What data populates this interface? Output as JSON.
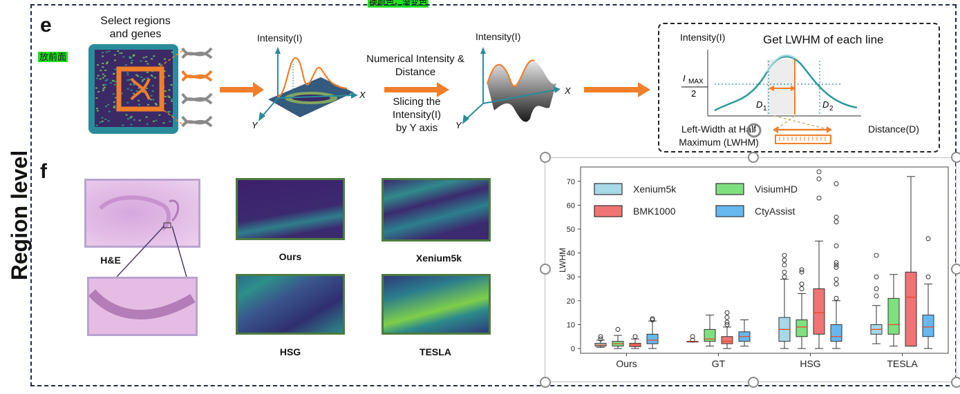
{
  "top_tag": "换颜色，渐变色",
  "side_tag": "放前面",
  "region_title": "Region level",
  "panel_e": {
    "letter": "e",
    "select_label": "Select regions and genes",
    "intensity_axis_1": "Intensity(I)",
    "intensity_axis_2": "Intensity(I)",
    "intensity_axis_3": "Intensity(I)",
    "x_axis": "X",
    "y_axis": "Y",
    "numerical_label": "Numerical Intensity & Distance",
    "slicing_label": "Slicing the Intensity(I) by Y axis",
    "lwhm_title": "Get LWHM of each line",
    "imax_num": "I",
    "imax_sub": "MAX",
    "imax_den": "2",
    "d1": "D",
    "d1_sub": "1",
    "d2": "D",
    "d2_sub": "2",
    "distance_label": "Distance(D)",
    "lwhm_caption": "Left-Width at Half Maximum (LWHM)"
  },
  "panel_f": {
    "letter": "f",
    "thumb_labels": [
      "H&E",
      "Ours",
      "Xenium5k",
      "HSG",
      "TESLA"
    ]
  },
  "colors": {
    "teal": "#2a8c9a",
    "orange": "#f07f2a",
    "navy": "#1f2a44",
    "tag_green": "#22e022"
  },
  "chart_data": {
    "type": "box",
    "ylabel": "LWHM",
    "ylim": [
      -2,
      76
    ],
    "yticks": [
      0,
      10,
      20,
      30,
      40,
      50,
      60,
      70
    ],
    "categories": [
      "Ours",
      "GT",
      "HSG",
      "TESLA"
    ],
    "legend_position": "top-left",
    "series": [
      {
        "name": "Xenium5k",
        "color": "#a9d8e6",
        "boxes": [
          {
            "min": 0.5,
            "q1": 1.0,
            "median": 1.5,
            "q3": 2.2,
            "max": 3.5,
            "outliers": [
              4,
              5
            ]
          },
          {
            "min": 3,
            "q1": 3,
            "median": 3,
            "q3": 3,
            "max": 3,
            "outliers": [
              3.5,
              5
            ]
          },
          {
            "min": 0,
            "q1": 3,
            "median": 8,
            "q3": 13,
            "max": 29,
            "outliers": [
              30,
              32,
              35,
              37,
              39
            ]
          },
          {
            "min": 2,
            "q1": 6,
            "median": 8,
            "q3": 10,
            "max": 18,
            "outliers": [
              22,
              25,
              30,
              39
            ]
          }
        ]
      },
      {
        "name": "VisiumHD",
        "color": "#7fe07f",
        "boxes": [
          {
            "min": 0,
            "q1": 1,
            "median": 2,
            "q3": 3,
            "max": 5.5,
            "outliers": [
              8
            ]
          },
          {
            "min": 1,
            "q1": 3,
            "median": 4,
            "q3": 8,
            "max": 14,
            "outliers": []
          },
          {
            "min": 0,
            "q1": 5,
            "median": 9,
            "q3": 12,
            "max": 23,
            "outliers": [
              25,
              27,
              32,
              33
            ]
          },
          {
            "min": 1,
            "q1": 6,
            "median": 10,
            "q3": 21,
            "max": 31,
            "outliers": []
          }
        ]
      },
      {
        "name": "BMK1000",
        "color": "#f07474",
        "boxes": [
          {
            "min": 0,
            "q1": 0.8,
            "median": 1.5,
            "q3": 2.2,
            "max": 4,
            "outliers": [
              5
            ]
          },
          {
            "min": 0,
            "q1": 2,
            "median": 3,
            "q3": 5,
            "max": 9,
            "outliers": [
              10,
              11,
              13,
              15
            ]
          },
          {
            "min": 0,
            "q1": 6,
            "median": 15,
            "q3": 25,
            "max": 45,
            "outliers": [
              63,
              71,
              74
            ]
          },
          {
            "min": 1,
            "q1": 1,
            "median": 21.5,
            "q3": 32,
            "max": 72,
            "outliers": []
          }
        ]
      },
      {
        "name": "CtyAssist",
        "color": "#66b8ee",
        "boxes": [
          {
            "min": 0,
            "q1": 2,
            "median": 3.5,
            "q3": 6,
            "max": 11.5,
            "outliers": [
              12,
              12.5
            ]
          },
          {
            "min": 1,
            "q1": 3,
            "median": 5,
            "q3": 7,
            "max": 12,
            "outliers": []
          },
          {
            "min": 0,
            "q1": 3,
            "median": 5,
            "q3": 10,
            "max": 20,
            "outliers": [
              21,
              27,
              29,
              34,
              35,
              36,
              43,
              53,
              55,
              69
            ]
          },
          {
            "min": 0,
            "q1": 5,
            "median": 9,
            "q3": 14,
            "max": 27,
            "outliers": [
              30,
              46
            ]
          }
        ]
      }
    ]
  }
}
